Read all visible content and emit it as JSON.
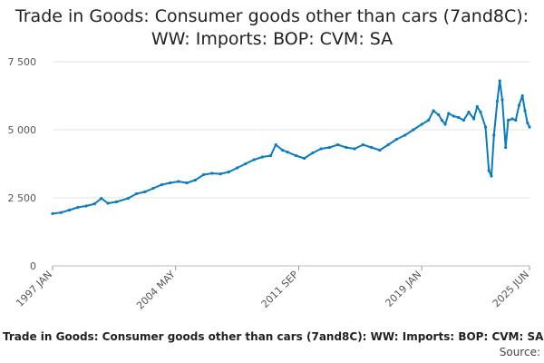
{
  "chart_data": {
    "type": "line",
    "title_line1": "Trade in Goods: Consumer goods other than cars (7and8C):",
    "title_line2": "WW: Imports: BOP: CVM: SA",
    "ylim": [
      0,
      7500
    ],
    "y_ticks": [
      {
        "value": 0,
        "label": "0"
      },
      {
        "value": 2500,
        "label": "2 500"
      },
      {
        "value": 5000,
        "label": "5 000"
      },
      {
        "value": 7500,
        "label": "7 500"
      }
    ],
    "x_range": [
      1997.0,
      2025.42
    ],
    "x_ticks": [
      {
        "value": 1997.0,
        "label": "1997 JAN"
      },
      {
        "value": 2004.33,
        "label": "2004 MAY"
      },
      {
        "value": 2011.67,
        "label": "2011 SEP"
      },
      {
        "value": 2019.0,
        "label": "2019 JAN"
      },
      {
        "value": 2025.42,
        "label": "2025 JUN"
      }
    ],
    "series": [
      {
        "name": "Trade in Goods: Consumer goods other than cars (7and8C): WW: Imports: BOP: CVM: SA",
        "color": "#0b7bc1",
        "points": [
          [
            1997.0,
            1920
          ],
          [
            1997.5,
            1960
          ],
          [
            1998.0,
            2050
          ],
          [
            1998.5,
            2150
          ],
          [
            1999.0,
            2200
          ],
          [
            1999.5,
            2280
          ],
          [
            1999.9,
            2480
          ],
          [
            2000.3,
            2300
          ],
          [
            2000.8,
            2350
          ],
          [
            2001.5,
            2480
          ],
          [
            2002.0,
            2650
          ],
          [
            2002.5,
            2720
          ],
          [
            2003.0,
            2850
          ],
          [
            2003.5,
            2980
          ],
          [
            2004.0,
            3050
          ],
          [
            2004.5,
            3100
          ],
          [
            2005.0,
            3050
          ],
          [
            2005.5,
            3150
          ],
          [
            2006.0,
            3350
          ],
          [
            2006.5,
            3400
          ],
          [
            2007.0,
            3380
          ],
          [
            2007.5,
            3450
          ],
          [
            2008.0,
            3600
          ],
          [
            2008.5,
            3750
          ],
          [
            2009.0,
            3900
          ],
          [
            2009.5,
            4000
          ],
          [
            2010.0,
            4050
          ],
          [
            2010.3,
            4450
          ],
          [
            2010.7,
            4250
          ],
          [
            2011.0,
            4180
          ],
          [
            2011.5,
            4050
          ],
          [
            2012.0,
            3950
          ],
          [
            2012.5,
            4150
          ],
          [
            2013.0,
            4300
          ],
          [
            2013.5,
            4350
          ],
          [
            2014.0,
            4450
          ],
          [
            2014.5,
            4350
          ],
          [
            2015.0,
            4300
          ],
          [
            2015.5,
            4450
          ],
          [
            2016.0,
            4350
          ],
          [
            2016.5,
            4250
          ],
          [
            2017.0,
            4450
          ],
          [
            2017.5,
            4650
          ],
          [
            2018.0,
            4800
          ],
          [
            2018.5,
            5000
          ],
          [
            2019.0,
            5200
          ],
          [
            2019.4,
            5350
          ],
          [
            2019.7,
            5700
          ],
          [
            2020.0,
            5550
          ],
          [
            2020.2,
            5350
          ],
          [
            2020.4,
            5200
          ],
          [
            2020.6,
            5600
          ],
          [
            2020.9,
            5500
          ],
          [
            2021.2,
            5450
          ],
          [
            2021.5,
            5350
          ],
          [
            2021.8,
            5650
          ],
          [
            2022.1,
            5400
          ],
          [
            2022.3,
            5850
          ],
          [
            2022.5,
            5650
          ],
          [
            2022.8,
            5100
          ],
          [
            2023.0,
            3500
          ],
          [
            2023.15,
            3300
          ],
          [
            2023.3,
            4800
          ],
          [
            2023.5,
            6050
          ],
          [
            2023.65,
            6800
          ],
          [
            2023.8,
            6100
          ],
          [
            2024.0,
            4350
          ],
          [
            2024.15,
            5350
          ],
          [
            2024.4,
            5400
          ],
          [
            2024.6,
            5350
          ],
          [
            2024.8,
            5900
          ],
          [
            2025.0,
            6250
          ],
          [
            2025.15,
            5700
          ],
          [
            2025.3,
            5250
          ],
          [
            2025.42,
            5100
          ]
        ]
      }
    ]
  },
  "footer": {
    "caption": "Trade in Goods: Consumer goods other than cars (7and8C): WW: Imports: BOP: CVM: SA",
    "source": "Source:"
  }
}
